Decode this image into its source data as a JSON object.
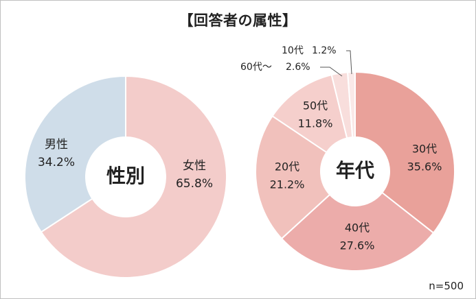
{
  "title": "【回答者の属性】",
  "note": "n=500",
  "colors": {
    "gender_male": "#cfdde9",
    "gender_female": "#f3ccca",
    "age_30": "#e9a19a",
    "age_40": "#ecacaa",
    "age_20": "#f1c1bc",
    "age_50": "#f5cfcc",
    "age_60plus": "#f8dedc",
    "age_10": "#fae9e8",
    "text": "#222222"
  },
  "chart_data": [
    {
      "type": "pie",
      "center_label": "性別",
      "slices": [
        {
          "name": "女性",
          "value": 65.8,
          "label": "65.8%"
        },
        {
          "name": "男性",
          "value": 34.2,
          "label": "34.2%"
        }
      ]
    },
    {
      "type": "pie",
      "center_label": "年代",
      "slices": [
        {
          "name": "30代",
          "value": 35.6,
          "label": "35.6%"
        },
        {
          "name": "40代",
          "value": 27.6,
          "label": "27.6%"
        },
        {
          "name": "20代",
          "value": 21.2,
          "label": "21.2%"
        },
        {
          "name": "50代",
          "value": 11.8,
          "label": "11.8%"
        },
        {
          "name": "60代～",
          "value": 2.6,
          "label": "2.6%"
        },
        {
          "name": "10代",
          "value": 1.2,
          "label": "1.2%"
        }
      ]
    }
  ]
}
